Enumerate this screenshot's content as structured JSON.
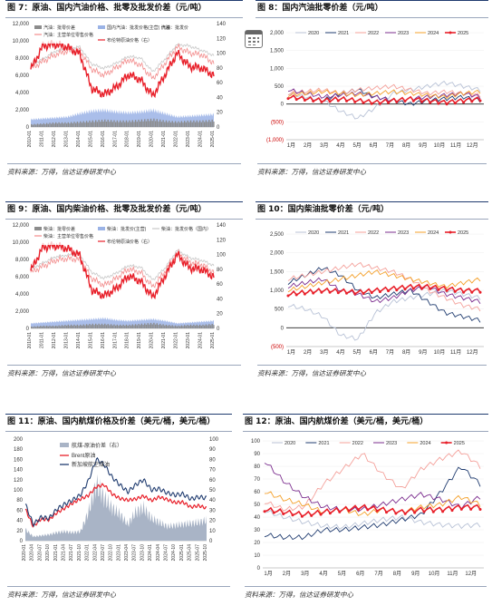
{
  "panels": {
    "p7": {
      "title": "图 7：原油、国内汽油价格、批零及批发价差（元/吨）",
      "source": "资料来源：万得，信达证券研发中心"
    },
    "p8": {
      "title": "图 8：国内汽油批零价差（元/吨）",
      "source": "资料来源：万得，信达证券研发中心"
    },
    "p9": {
      "title": "图 9：原油、国内柴油价格、批零及批发价差（元/吨）",
      "source": "资料来源：万得，信达证券研发中心"
    },
    "p10": {
      "title": "图 10：国内柴油批零价差（元/吨）",
      "source": "资料来源：万得，信达证券研发中心"
    },
    "p11": {
      "title": "图 11：原油、国内航煤价格及价差（美元/桶，美元/桶）",
      "source": "资料来源：万得，信达证券研发中心"
    },
    "p12": {
      "title": "图 12：原油、国内航煤价差（美元/桶，美元/桶）",
      "source": "资料来源：万得，信达证券研发中心"
    }
  },
  "colors": {
    "gray_bar": "#8c8c8c",
    "blue_area": "#9bb3e6",
    "black": "#111111",
    "red": "#e8202a",
    "pink": "#f28b8b",
    "lightgray": "#c8c8c8",
    "c2020": "#b8c2d6",
    "c2021": "#1f3b6f",
    "c2022": "#f4a09a",
    "c2023": "#7b2d8e",
    "c2024": "#f4a02a",
    "c2025": "#e8202a"
  },
  "icons": {
    "calendar": "calendar-icon"
  },
  "chart_data": [
    {
      "id": "fig7",
      "type": "line",
      "legend": [
        "汽油：批零价差",
        "国内汽油：批发价格(主营) 价差",
        "汽油：批发价",
        "汽油：主营单位零售价格",
        "布伦特原油价格（右）"
      ],
      "x_ticks": [
        "2010-01",
        "2011-01",
        "2012-01",
        "2013-01",
        "2014-01",
        "2015-01",
        "2016-01",
        "2017-01",
        "2018-01",
        "2019-01",
        "2020-01",
        "2021-01",
        "2022-01",
        "2023-01",
        "2024-01",
        "2025-01"
      ],
      "x_years": [
        2010,
        2011,
        2012,
        2013,
        2014,
        2015,
        2016,
        2017,
        2018,
        2019,
        2020,
        2021,
        2022,
        2023,
        2024,
        2025
      ],
      "ylim": [
        0,
        12000
      ],
      "y_ticks": [
        "0",
        "2,000",
        "4,000",
        "6,000",
        "8,000",
        "10,000",
        "12,000"
      ],
      "y2lim": [
        0,
        140
      ],
      "y2_ticks": [
        "0",
        "20",
        "40",
        "60",
        "80",
        "100",
        "120",
        "140"
      ],
      "retail": [
        7200,
        7900,
        8800,
        9100,
        9300,
        7300,
        6800,
        7400,
        8200,
        8000,
        6400,
        7900,
        9600,
        9400,
        8900,
        8300
      ],
      "wholesale": [
        6800,
        7600,
        8400,
        8800,
        8900,
        6700,
        6000,
        6900,
        7800,
        7200,
        5600,
        7400,
        9300,
        8600,
        8400,
        7400
      ],
      "brent": [
        78,
        110,
        112,
        108,
        99,
        52,
        44,
        54,
        71,
        64,
        42,
        71,
        100,
        82,
        80,
        70
      ],
      "spread": [
        900,
        1000,
        1100,
        1200,
        1600,
        1900,
        2000,
        1800,
        1700,
        1800,
        2000,
        1600,
        1200,
        1300,
        1400,
        1500
      ],
      "ws_spread": [
        300,
        400,
        500,
        500,
        600,
        700,
        800,
        700,
        700,
        800,
        900,
        700,
        600,
        700,
        700,
        800
      ]
    },
    {
      "id": "fig8",
      "type": "line",
      "x_ticks": [
        "1月",
        "2月",
        "3月",
        "4月",
        "5月",
        "6月",
        "7月",
        "8月",
        "9月",
        "10月",
        "11月",
        "12月"
      ],
      "ylim": [
        -1000,
        2000
      ],
      "y_ticks": [
        "(1,000)",
        "(500)",
        "0",
        "500",
        "1,000",
        "1,500",
        "2,000"
      ],
      "series": [
        {
          "name": "2020",
          "values": [
            300,
            200,
            100,
            -200,
            -400,
            -100,
            300,
            400,
            500,
            600,
            500,
            400
          ]
        },
        {
          "name": "2021",
          "values": [
            200,
            150,
            100,
            300,
            400,
            200,
            100,
            0,
            100,
            150,
            200,
            100
          ]
        },
        {
          "name": "2022",
          "values": [
            300,
            350,
            400,
            300,
            400,
            450,
            500,
            400,
            300,
            350,
            300,
            250
          ]
        },
        {
          "name": "2023",
          "values": [
            400,
            300,
            200,
            250,
            300,
            200,
            100,
            150,
            200,
            250,
            300,
            200
          ]
        },
        {
          "name": "2024",
          "values": [
            250,
            300,
            350,
            300,
            250,
            300,
            350,
            300,
            250,
            200,
            300,
            350
          ]
        },
        {
          "name": "2025",
          "values": [
            200,
            150,
            100,
            150,
            100,
            50,
            100,
            150,
            100,
            50,
            100,
            150
          ]
        }
      ]
    },
    {
      "id": "fig9",
      "type": "line",
      "legend": [
        "柴油：批零价差",
        "柴油：批发价(主营)",
        "柴油：批发价格（国内）",
        "柴油：主营单位零售价格",
        "布伦特原油价格（右）"
      ],
      "x_ticks": [
        "2010-01",
        "2011-01",
        "2012-01",
        "2013-01",
        "2014-01",
        "2015-01",
        "2016-01",
        "2017-01",
        "2018-01",
        "2019-01",
        "2020-01",
        "2021-01",
        "2022-01",
        "2023-01",
        "2024-01",
        "2025-01"
      ],
      "x_years": [
        2010,
        2011,
        2012,
        2013,
        2014,
        2015,
        2016,
        2017,
        2018,
        2019,
        2020,
        2021,
        2022,
        2023,
        2024,
        2025
      ],
      "ylim": [
        0,
        12000
      ],
      "y_ticks": [
        "0",
        "2,000",
        "4,000",
        "6,000",
        "8,000",
        "10,000",
        "12,000"
      ],
      "y2lim": [
        0,
        140
      ],
      "y2_ticks": [
        "0",
        "20",
        "40",
        "60",
        "80",
        "100",
        "120",
        "140"
      ],
      "retail": [
        6900,
        7600,
        8300,
        8500,
        8600,
        6500,
        5800,
        6400,
        7300,
        7100,
        5600,
        7000,
        9100,
        8200,
        7900,
        7300
      ],
      "wholesale": [
        6500,
        7200,
        7900,
        8100,
        8000,
        5800,
        5000,
        5800,
        6900,
        6500,
        4800,
        6600,
        8800,
        7700,
        7400,
        6500
      ],
      "brent": [
        78,
        110,
        112,
        108,
        99,
        52,
        44,
        54,
        71,
        64,
        42,
        71,
        100,
        82,
        80,
        70
      ],
      "spread": [
        600,
        700,
        800,
        900,
        1000,
        1100,
        1200,
        1000,
        900,
        1000,
        1100,
        900,
        600,
        700,
        800,
        900
      ],
      "ws_spread": [
        200,
        300,
        300,
        400,
        400,
        500,
        500,
        400,
        400,
        500,
        600,
        400,
        300,
        400,
        400,
        500
      ]
    },
    {
      "id": "fig10",
      "type": "line",
      "x_ticks": [
        "1月",
        "2月",
        "3月",
        "4月",
        "5月",
        "6月",
        "7月",
        "8月",
        "9月",
        "10月",
        "11月",
        "12月"
      ],
      "ylim": [
        -500,
        2500
      ],
      "y_ticks": [
        "(500)",
        "0",
        "500",
        "1,000",
        "1,500",
        "2,000",
        "2,500"
      ],
      "series": [
        {
          "name": "2020",
          "values": [
            600,
            500,
            300,
            -200,
            -300,
            400,
            700,
            800,
            900,
            1000,
            900,
            800
          ]
        },
        {
          "name": "2021",
          "values": [
            1200,
            1400,
            1600,
            1400,
            1000,
            800,
            900,
            1000,
            700,
            400,
            300,
            200
          ]
        },
        {
          "name": "2022",
          "values": [
            1300,
            1400,
            1500,
            1600,
            1700,
            1600,
            1500,
            1300,
            1000,
            800,
            600,
            500
          ]
        },
        {
          "name": "2023",
          "values": [
            1100,
            1200,
            1300,
            1000,
            900,
            700,
            800,
            1000,
            1100,
            900,
            800,
            700
          ]
        },
        {
          "name": "2024",
          "values": [
            1000,
            1100,
            1200,
            1300,
            1400,
            1500,
            1400,
            1300,
            1200,
            1100,
            1200,
            1300
          ]
        },
        {
          "name": "2025",
          "values": [
            900,
            950,
            1000,
            980,
            950,
            1000,
            1050,
            1100,
            1100,
            1050,
            1000,
            1000
          ]
        }
      ]
    },
    {
      "id": "fig11",
      "type": "line",
      "legend": [
        "航煤-原油价差（右）",
        "Brent原油",
        "新加坡航空煤油"
      ],
      "x_ticks": [
        "2020-01",
        "2020-04",
        "2020-07",
        "2020-10",
        "2021-01",
        "2021-04",
        "2021-07",
        "2021-10",
        "2022-01",
        "2022-04",
        "2022-07",
        "2022-10",
        "2023-01",
        "2023-04",
        "2023-07",
        "2023-10",
        "2024-01",
        "2024-04",
        "2024-07",
        "2024-10",
        "2025-01",
        "2025-04",
        "2025-07",
        "2025-10"
      ],
      "ylim": [
        0,
        200
      ],
      "y_ticks": [
        "0",
        "20",
        "40",
        "60",
        "80",
        "100",
        "120",
        "140",
        "160",
        "180",
        "200"
      ],
      "y2lim": [
        0,
        100
      ],
      "y2_ticks": [
        "0",
        "10",
        "20",
        "30",
        "40",
        "50",
        "60",
        "70",
        "80",
        "90",
        "100"
      ],
      "x_quarters": [
        0,
        1,
        2,
        3,
        4,
        5,
        6,
        7,
        8,
        9,
        10,
        11,
        12,
        13,
        14,
        15,
        16,
        17,
        18,
        19,
        20,
        21,
        22,
        23
      ],
      "brent": [
        62,
        28,
        43,
        41,
        55,
        64,
        74,
        82,
        89,
        106,
        110,
        92,
        83,
        80,
        82,
        88,
        79,
        86,
        81,
        75,
        76,
        66,
        69,
        64
      ],
      "jet": [
        72,
        32,
        46,
        44,
        62,
        72,
        80,
        90,
        118,
        160,
        150,
        125,
        110,
        96,
        110,
        120,
        100,
        102,
        94,
        90,
        92,
        82,
        86,
        84
      ],
      "crack": [
        11,
        4,
        5,
        6,
        8,
        9,
        8,
        9,
        28,
        55,
        42,
        32,
        26,
        16,
        28,
        32,
        22,
        18,
        14,
        15,
        16,
        17,
        18,
        20
      ]
    },
    {
      "id": "fig12",
      "type": "line",
      "x_ticks": [
        "1月",
        "2月",
        "3月",
        "4月",
        "5月",
        "6月",
        "7月",
        "8月",
        "9月",
        "10月",
        "11月",
        "12月"
      ],
      "ylim": [
        0,
        100
      ],
      "y_ticks": [
        "0",
        "10",
        "20",
        "30",
        "40",
        "50",
        "60",
        "70",
        "80",
        "90",
        "100"
      ],
      "series": [
        {
          "name": "2020",
          "values": [
            45,
            40,
            36,
            33,
            32,
            35,
            38,
            40,
            36,
            34,
            33,
            34
          ]
        },
        {
          "name": "2021",
          "values": [
            26,
            24,
            24,
            30,
            30,
            32,
            34,
            38,
            42,
            60,
            80,
            66
          ]
        },
        {
          "name": "2022",
          "values": [
            52,
            46,
            48,
            66,
            78,
            90,
            74,
            62,
            78,
            86,
            92,
            80
          ]
        },
        {
          "name": "2023",
          "values": [
            84,
            68,
            56,
            48,
            46,
            46,
            50,
            54,
            58,
            54,
            48,
            56
          ]
        },
        {
          "name": "2024",
          "values": [
            60,
            54,
            50,
            44,
            46,
            42,
            46,
            44,
            48,
            50,
            56,
            50
          ]
        },
        {
          "name": "2025",
          "values": [
            46,
            44,
            42,
            44,
            46,
            48,
            46,
            44,
            46,
            46,
            48,
            48
          ]
        }
      ]
    }
  ]
}
